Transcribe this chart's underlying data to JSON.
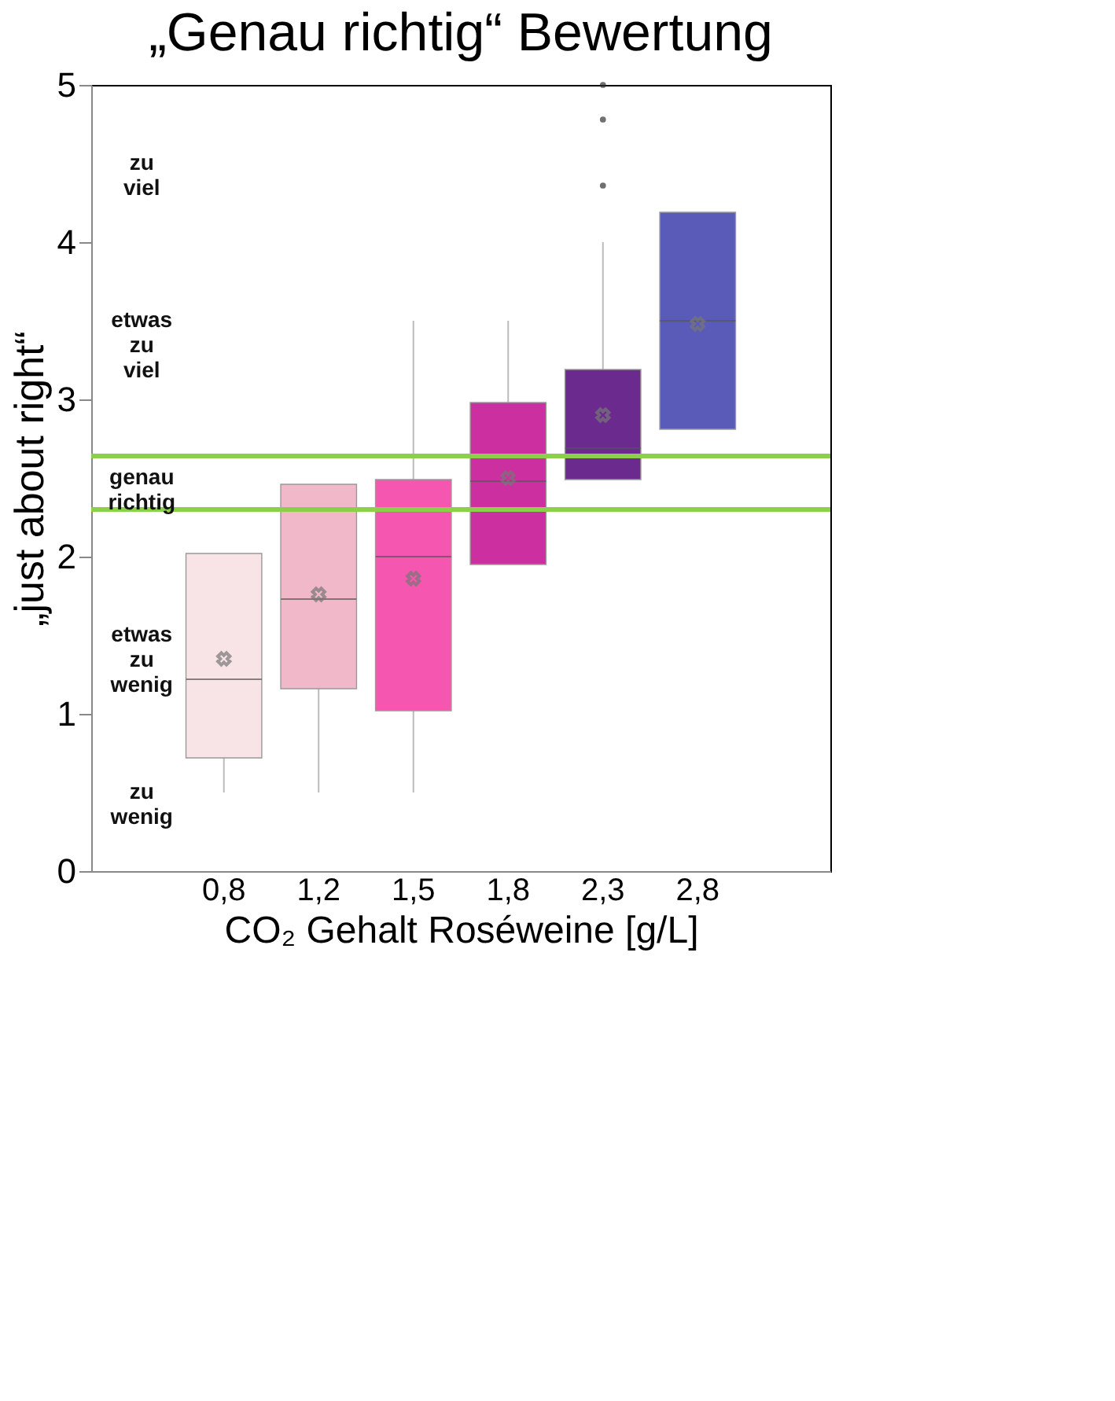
{
  "chart_data": {
    "type": "box",
    "title": "„Genau richtig“ Bewertung",
    "ylabel": "„just about right“",
    "xlabel": "CO₂ Gehalt Roséweine [g/L]",
    "categories": [
      "0,8",
      "1,2",
      "1,5",
      "1,8",
      "2,3",
      "2,8"
    ],
    "colors": [
      "#f8e4e6",
      "#f0b8c8",
      "#f556b0",
      "#cc2fa0",
      "#6a2a8e",
      "#5a5bb8"
    ],
    "boxes": [
      {
        "low": 0.5,
        "q1": 0.72,
        "median": 1.22,
        "q3": 2.02,
        "high": 2.02,
        "mean": 1.35
      },
      {
        "low": 0.5,
        "q1": 1.16,
        "median": 1.73,
        "q3": 2.46,
        "high": 2.46,
        "mean": 1.76
      },
      {
        "low": 0.5,
        "q1": 1.02,
        "median": 2.0,
        "q3": 2.49,
        "high": 3.5,
        "mean": 1.86
      },
      {
        "low": 1.95,
        "q1": 1.95,
        "median": 2.48,
        "q3": 2.98,
        "high": 3.5,
        "mean": 2.5
      },
      {
        "low": 2.49,
        "q1": 2.49,
        "median": 2.69,
        "q3": 3.19,
        "high": 4.0,
        "mean": 2.9,
        "outliers": [
          4.36,
          4.78,
          5.0
        ]
      },
      {
        "low": 2.81,
        "q1": 2.81,
        "median": 3.5,
        "q3": 4.19,
        "high": 4.19,
        "mean": 3.48
      }
    ],
    "ylim": [
      0,
      5
    ],
    "yticks": [
      0,
      1,
      2,
      3,
      4,
      5
    ],
    "grid": false,
    "ref_lines": [
      {
        "axis": "y",
        "value": 2.64,
        "color": "#8ccf4a"
      },
      {
        "axis": "y",
        "value": 2.3,
        "color": "#8ccf4a"
      }
    ],
    "annotations": [
      "zu viel",
      "etwas zu viel",
      "genau richtig",
      "etwas zu wenig",
      "zu wenig"
    ]
  }
}
